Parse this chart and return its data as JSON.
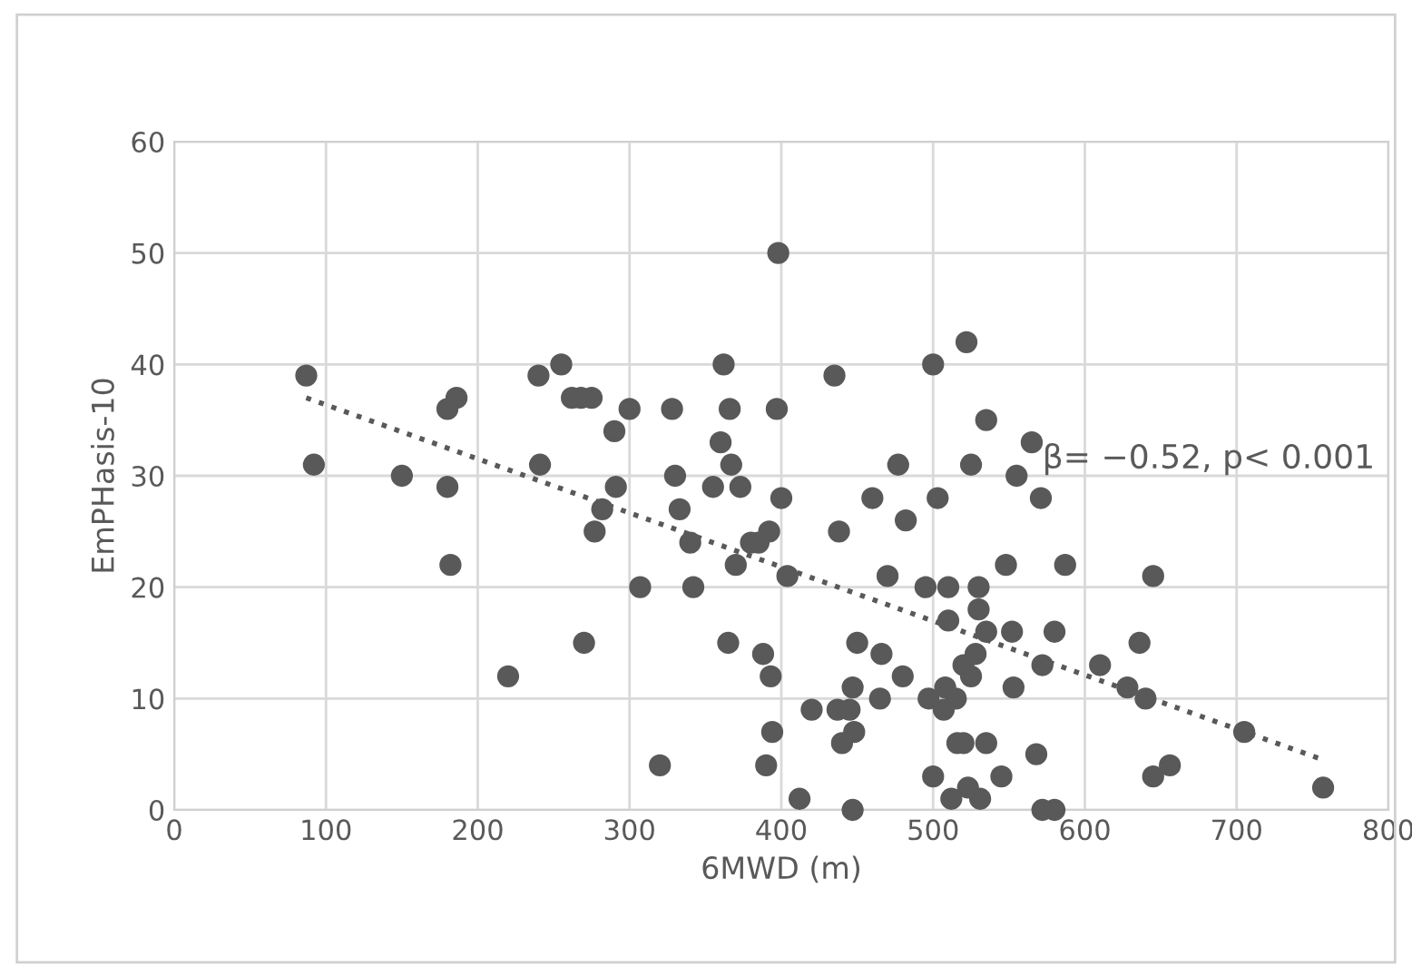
{
  "chart_data": {
    "type": "scatter",
    "xlabel": "6MWD (m)",
    "ylabel": "EmPHasis-10",
    "xlim": [
      0,
      800
    ],
    "ylim": [
      0,
      60
    ],
    "xticks": [
      0,
      100,
      200,
      300,
      400,
      500,
      600,
      700,
      800
    ],
    "yticks": [
      0,
      10,
      20,
      30,
      40,
      50,
      60
    ],
    "grid": true,
    "marker": "circle",
    "annotations": [
      "β= −0.52, p< 0.001"
    ],
    "series": [
      {
        "color": "#595959",
        "x": [
          87,
          92,
          150,
          180,
          180,
          182,
          186,
          220,
          240,
          241,
          255,
          262,
          268,
          275,
          270,
          277,
          282,
          290,
          291,
          300,
          307,
          320,
          328,
          330,
          333,
          340,
          342,
          355,
          360,
          362,
          365,
          366,
          367,
          370,
          373,
          380,
          385,
          388,
          390,
          392,
          394,
          393,
          397,
          400,
          398,
          404,
          412,
          420,
          435,
          437,
          438,
          440,
          445,
          447,
          447,
          450,
          448,
          460,
          465,
          466,
          470,
          477,
          482,
          480,
          495,
          497,
          500,
          500,
          503,
          507,
          508,
          510,
          510,
          512,
          515,
          516,
          520,
          522,
          520,
          523,
          525,
          525,
          528,
          530,
          530,
          531,
          535,
          535,
          535,
          545,
          548,
          552,
          553,
          555,
          565,
          568,
          571,
          572,
          572,
          580,
          580,
          587,
          610,
          628,
          636,
          640,
          645,
          645,
          656,
          705,
          757
        ],
        "values": [
          39,
          31,
          30,
          36,
          29,
          22,
          37,
          12,
          39,
          31,
          40,
          37,
          37,
          37,
          15,
          25,
          27,
          34,
          29,
          36,
          20,
          4,
          36,
          30,
          27,
          24,
          20,
          29,
          33,
          40,
          15,
          36,
          31,
          22,
          29,
          24,
          24,
          14,
          4,
          25,
          7,
          12,
          36,
          28,
          50,
          21,
          1,
          9,
          39,
          9,
          25,
          6,
          9,
          11,
          0,
          15,
          7,
          28,
          10,
          14,
          21,
          31,
          26,
          12,
          20,
          10,
          40,
          3,
          28,
          9,
          11,
          17,
          20,
          1,
          10,
          6,
          13,
          42,
          6,
          2,
          12,
          31,
          14,
          20,
          18,
          1,
          35,
          16,
          6,
          3,
          22,
          16,
          11,
          30,
          33,
          5,
          28,
          13,
          0,
          0,
          16,
          22,
          13,
          11,
          15,
          10,
          3,
          21,
          4,
          7,
          2
        ]
      },
      {
        "type": "line",
        "color": "#595959",
        "line_style": "dotted",
        "marker": "none",
        "x": [
          87,
          757
        ],
        "values": [
          37,
          4.5
        ]
      }
    ]
  }
}
